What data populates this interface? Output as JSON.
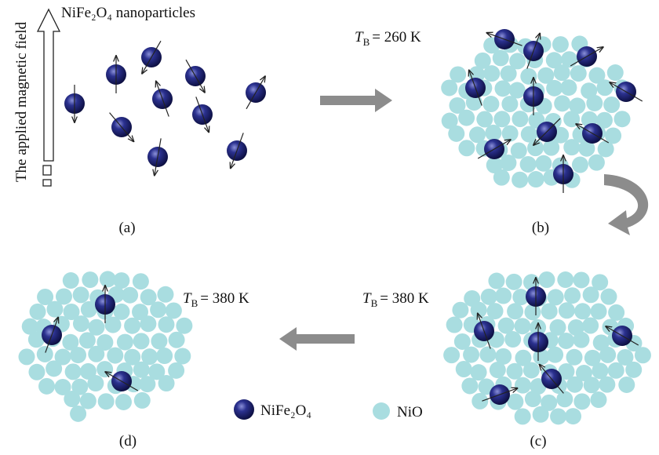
{
  "panel_a": {
    "field_label": "The applied magnetic field",
    "particles_label": "NiFe₂O₄ nanoparticles",
    "caption": "(a)"
  },
  "panel_b": {
    "temperature": {
      "symbol": "T",
      "subscript": "B",
      "value": "= 260 K"
    },
    "caption": "(b)"
  },
  "panel_c": {
    "temperature": {
      "symbol": "T",
      "subscript": "B",
      "value": "= 380 K"
    },
    "caption": "(c)"
  },
  "panel_d": {
    "temperature": {
      "symbol": "T",
      "subscript": "B",
      "value": "= 380 K"
    },
    "caption": "(d)"
  },
  "legend": {
    "items": [
      "NiFe₂O₄",
      "NiO"
    ]
  }
}
